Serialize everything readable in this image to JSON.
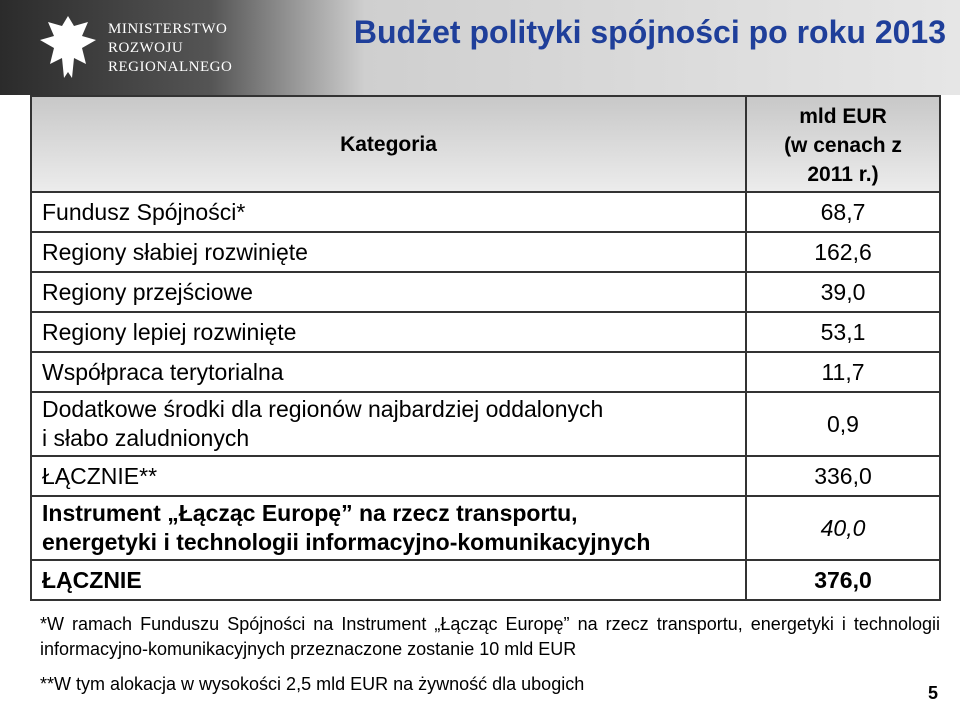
{
  "header": {
    "logo": [
      "MINISTERSTWO",
      "ROZWOJU",
      "REGIONALNEGO"
    ],
    "title": "Budżet polityki spójności po roku 2013"
  },
  "table": {
    "columns": [
      [
        "Kategoria"
      ],
      [
        "mld EUR",
        "(w cenach z",
        "2011 r.)"
      ]
    ],
    "rows": [
      [
        [
          "Fundusz Spójności*"
        ],
        "68,7"
      ],
      [
        [
          "Regiony słabiej rozwinięte"
        ],
        "162,6"
      ],
      [
        [
          "Regiony przejściowe"
        ],
        "39,0"
      ],
      [
        [
          "Regiony lepiej rozwinięte"
        ],
        "53,1"
      ],
      [
        [
          "Współpraca terytorialna"
        ],
        "11,7"
      ],
      [
        [
          "Dodatkowe środki dla regionów najbardziej oddalonych",
          "i słabo zaludnionych"
        ],
        "0,9"
      ],
      [
        [
          "ŁĄCZNIE**"
        ],
        "336,0"
      ],
      [
        [
          "Instrument „Łącząc Europę” na rzecz transportu,",
          "energetyki i technologii informacyjno-komunikacyjnych"
        ],
        "40,0"
      ],
      [
        [
          "ŁĄCZNIE"
        ],
        "376,0"
      ]
    ]
  },
  "footnotes": [
    "*W ramach Funduszu Spójności na Instrument „Łącząc Europę” na rzecz transportu, energetyki i technologii informacyjno-komunikacyjnych przeznaczone zostanie 10 mld EUR",
    "**W tym alokacja w wysokości 2,5 mld EUR na żywność dla ubogich"
  ],
  "page_number": "5"
}
